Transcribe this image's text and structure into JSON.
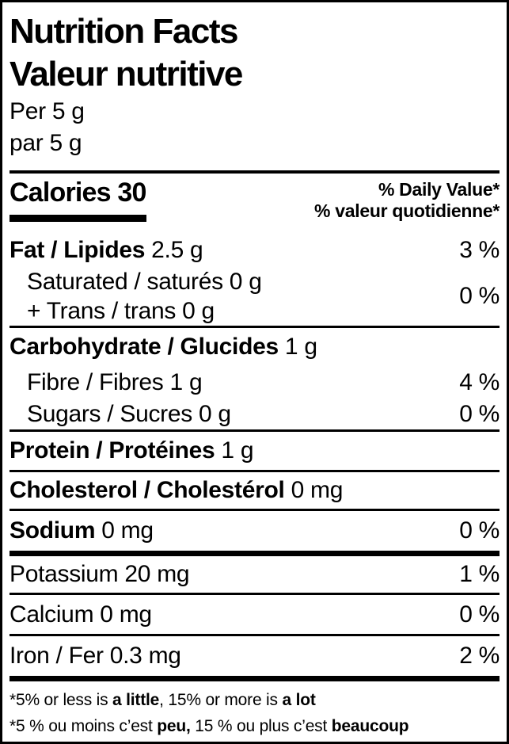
{
  "label": {
    "title_en": "Nutrition Facts",
    "title_fr": "Valeur nutritive",
    "serving_en": "Per 5 g",
    "serving_fr": "par 5 g",
    "calories": "Calories 30",
    "dv_header_en": "% Daily Value*",
    "dv_header_fr": "% valeur quotidienne*"
  },
  "rows": {
    "fat": {
      "bold": "Fat / Lipides",
      "value": "2.5 g",
      "dv": "3 %"
    },
    "saturated_trans": {
      "line1": "Saturated / saturés 0 g",
      "line2": "+ Trans / trans 0 g",
      "dv": "0 %"
    },
    "carbohydrate": {
      "bold": "Carbohydrate / Glucides",
      "value": "1 g"
    },
    "fibre": {
      "label": "Fibre / Fibres 1 g",
      "dv": "4 %"
    },
    "sugars": {
      "label": "Sugars / Sucres 0 g",
      "dv": "0 %"
    },
    "protein": {
      "bold": "Protein / Protéines",
      "value": "1 g"
    },
    "cholesterol": {
      "bold": "Cholesterol / Cholestérol",
      "value": "0 mg"
    },
    "sodium": {
      "bold": "Sodium",
      "value": "0 mg",
      "dv": "0 %"
    },
    "potassium": {
      "label": "Potassium 20 mg",
      "dv": "1 %"
    },
    "calcium": {
      "label": "Calcium 0 mg",
      "dv": "0 %"
    },
    "iron": {
      "label": "Iron / Fer 0.3 mg",
      "dv": "2 %"
    }
  },
  "footnotes": {
    "en": {
      "p1": "*5% or less is ",
      "b1": "a little",
      "p2": ", 15% or more is ",
      "b2": "a lot"
    },
    "fr": {
      "p1": "*5 % ou moins c’est ",
      "b1": "peu,",
      "p2": " 15 % ou plus c’est ",
      "b2": "beaucoup"
    }
  },
  "colors": {
    "text": "#000000",
    "background": "#ffffff",
    "border": "#000000"
  }
}
